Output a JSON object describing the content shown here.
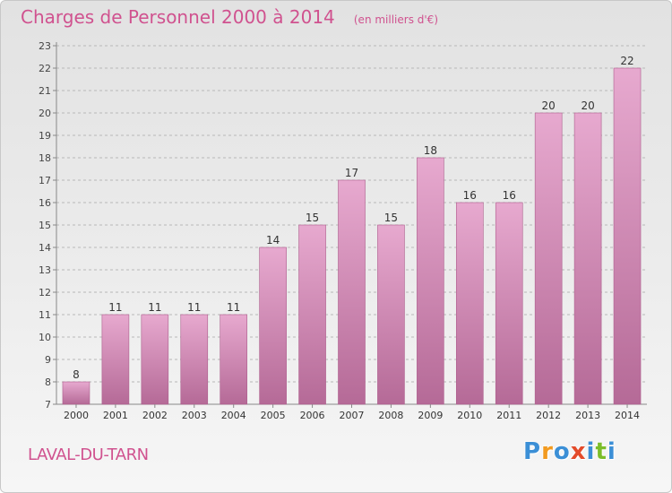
{
  "title": "Charges de Personnel 2000 à 2014",
  "subtitle": "(en milliers d'€)",
  "commune": "LAVAL-DU-TARN",
  "logo": {
    "letters": [
      "P",
      "r",
      "o",
      "x",
      "i",
      "t",
      "i"
    ],
    "colors": [
      "#3b8fd6",
      "#f29a1f",
      "#3b8fd6",
      "#e34b2a",
      "#3b8fd6",
      "#7bbd2a",
      "#3b8fd6"
    ]
  },
  "colors": {
    "accent": "#d0528f",
    "bar_top": "#e7a9cf",
    "bar_bottom": "#b56a97",
    "bar_stroke": "#ad5e8d"
  },
  "chart_data": {
    "type": "bar",
    "categories": [
      "2000",
      "2001",
      "2002",
      "2003",
      "2004",
      "2005",
      "2006",
      "2007",
      "2008",
      "2009",
      "2010",
      "2011",
      "2012",
      "2013",
      "2014"
    ],
    "values": [
      8,
      11,
      11,
      11,
      11,
      14,
      15,
      17,
      15,
      18,
      16,
      16,
      20,
      20,
      22
    ],
    "ylim": [
      7,
      23
    ],
    "yticks": [
      7,
      8,
      9,
      10,
      11,
      12,
      13,
      14,
      15,
      16,
      17,
      18,
      19,
      20,
      21,
      22,
      23
    ],
    "grid": true,
    "title": "Charges de Personnel 2000 à 2014",
    "xlabel": "",
    "ylabel": ""
  }
}
